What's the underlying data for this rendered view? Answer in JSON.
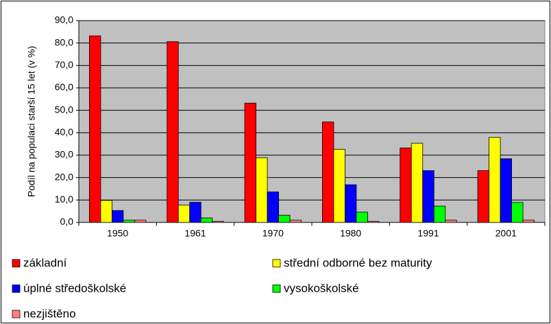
{
  "chart_data": {
    "type": "bar",
    "y_axis_label": "Podíl na populaci starší 15 let (v %)",
    "categories": [
      "1950",
      "1961",
      "1970",
      "1980",
      "1991",
      "2001"
    ],
    "series": [
      {
        "name": "základní",
        "color": "#ff0000",
        "values": [
          83.2,
          80.6,
          53.2,
          44.8,
          33.2,
          23.1
        ]
      },
      {
        "name": "střední odborné bez maturity",
        "color": "#ffff00",
        "values": [
          9.8,
          7.7,
          28.8,
          32.6,
          35.3,
          37.9
        ]
      },
      {
        "name": "úplné středoškolské",
        "color": "#0000ff",
        "values": [
          5.3,
          9.0,
          13.6,
          16.8,
          23.1,
          28.4
        ]
      },
      {
        "name": "vysokoškolské",
        "color": "#00ff00",
        "values": [
          1.0,
          2.0,
          3.2,
          4.6,
          7.3,
          8.9
        ]
      },
      {
        "name": "nezjištěno",
        "color": "#ff8080",
        "values": [
          1.0,
          0.5,
          1.0,
          0.5,
          1.0,
          1.0
        ]
      }
    ],
    "ylim": [
      0,
      90
    ],
    "yticks": [
      {
        "value": 0,
        "label": "0,0"
      },
      {
        "value": 10,
        "label": "10,0"
      },
      {
        "value": 20,
        "label": "20,0"
      },
      {
        "value": 30,
        "label": "30,0"
      },
      {
        "value": 40,
        "label": "40,0"
      },
      {
        "value": 50,
        "label": "50,0"
      },
      {
        "value": 60,
        "label": "60,0"
      },
      {
        "value": 70,
        "label": "70,0"
      },
      {
        "value": 80,
        "label": "80,0"
      },
      {
        "value": 90,
        "label": "90,0"
      }
    ],
    "grid": true,
    "plot_background": "#c0c0c0",
    "legend": "bottom"
  }
}
